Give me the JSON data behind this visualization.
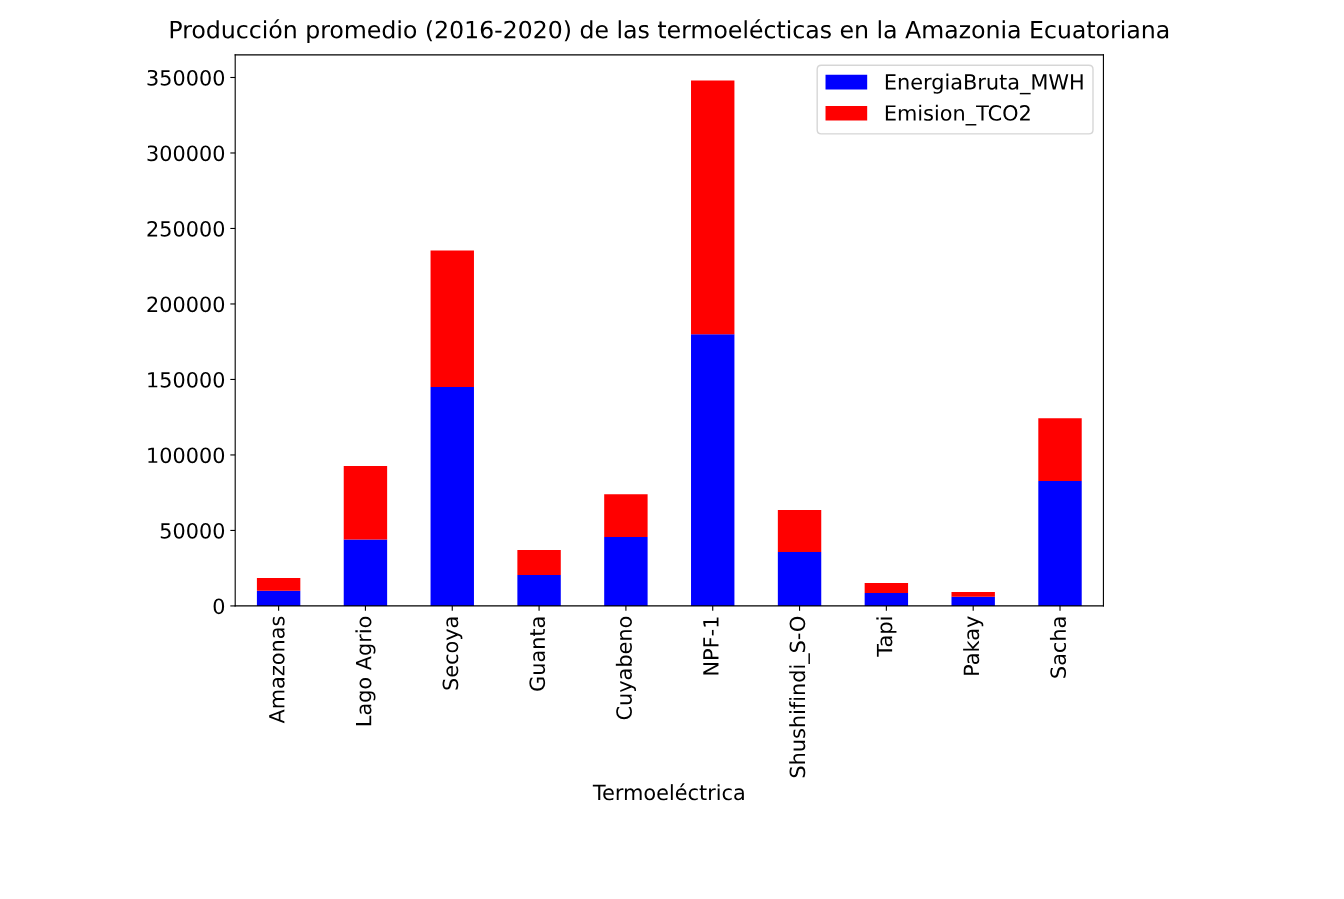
{
  "chart_data": {
    "type": "bar",
    "stacked": true,
    "title": "Producción promedio (2016-2020) de las termoelécticas en la Amazonia Ecuatoriana",
    "xlabel": "Termoeléctrica",
    "categories": [
      "Amazonas",
      "Lago Agrio",
      "Secoya",
      "Guanta",
      "Cuyabeno",
      "NPF-1",
      "Shushifindi_S-O",
      "Tapi",
      "Pakay",
      "Sacha"
    ],
    "series": [
      {
        "name": "EnergiaBruta_MWH",
        "color": "#0000ff",
        "values": [
          10000,
          44000,
          145000,
          20500,
          45600,
          180000,
          35700,
          8600,
          6000,
          82700
        ]
      },
      {
        "name": "Emision_TCO2",
        "color": "#ff0000",
        "values": [
          8500,
          48600,
          90400,
          16500,
          28400,
          168000,
          27800,
          6600,
          3300,
          41600
        ]
      }
    ],
    "ylim": [
      0,
      365000
    ],
    "yticks": [
      0,
      50000,
      100000,
      150000,
      200000,
      250000,
      300000,
      350000
    ],
    "legend": "top right",
    "grid": false
  }
}
